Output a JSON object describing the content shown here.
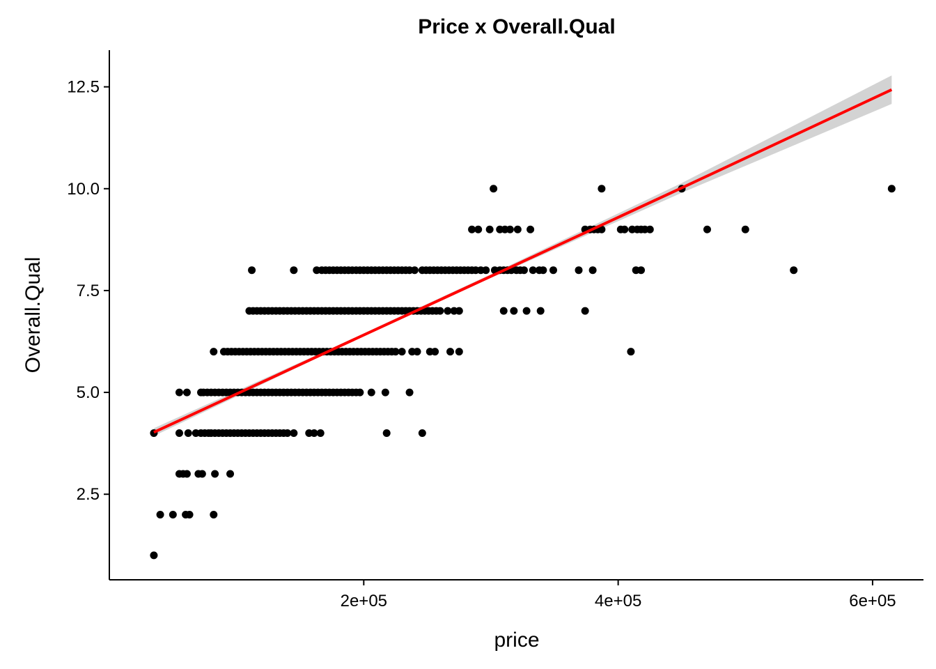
{
  "chart_data": {
    "type": "scatter",
    "title": "Price x Overall.Qual",
    "xlabel": "price",
    "ylabel": "Overall.Qual",
    "xlim": [
      0,
      640000
    ],
    "ylim": [
      0.4,
      13.4
    ],
    "x_ticks": [
      {
        "value": 200000,
        "label": "2e+05"
      },
      {
        "value": 400000,
        "label": "4e+05"
      },
      {
        "value": 600000,
        "label": "6e+05"
      }
    ],
    "y_ticks": [
      {
        "value": 2.5,
        "label": "2.5"
      },
      {
        "value": 5.0,
        "label": "5.0"
      },
      {
        "value": 7.5,
        "label": "7.5"
      },
      {
        "value": 10.0,
        "label": "10.0"
      },
      {
        "value": 12.5,
        "label": "12.5"
      }
    ],
    "grid": false,
    "legend": "none",
    "point_color": "#000000",
    "series": [
      {
        "points": [
          [
            35000,
            1
          ],
          [
            40000,
            2
          ],
          [
            50000,
            2
          ],
          [
            60000,
            2
          ],
          [
            63000,
            2
          ],
          [
            82000,
            2
          ],
          [
            55000,
            3
          ],
          [
            58000,
            3
          ],
          [
            61000,
            3
          ],
          [
            70000,
            3
          ],
          [
            73000,
            3
          ],
          [
            83000,
            3
          ],
          [
            95000,
            3
          ],
          [
            35000,
            4
          ],
          [
            55000,
            4
          ],
          [
            62000,
            4
          ],
          [
            68000,
            4
          ],
          [
            72000,
            4
          ],
          [
            75000,
            4
          ],
          [
            78000,
            4
          ],
          [
            80000,
            4
          ],
          [
            83000,
            4
          ],
          [
            86000,
            4
          ],
          [
            89000,
            4
          ],
          [
            92000,
            4
          ],
          [
            95000,
            4
          ],
          [
            98000,
            4
          ],
          [
            101000,
            4
          ],
          [
            104000,
            4
          ],
          [
            107000,
            4
          ],
          [
            110000,
            4
          ],
          [
            113000,
            4
          ],
          [
            116000,
            4
          ],
          [
            119000,
            4
          ],
          [
            122000,
            4
          ],
          [
            125000,
            4
          ],
          [
            128000,
            4
          ],
          [
            131000,
            4
          ],
          [
            134000,
            4
          ],
          [
            137000,
            4
          ],
          [
            140000,
            4
          ],
          [
            145000,
            4
          ],
          [
            157000,
            4
          ],
          [
            161000,
            4
          ],
          [
            166000,
            4
          ],
          [
            218000,
            4
          ],
          [
            246000,
            4
          ],
          [
            55000,
            5
          ],
          [
            61000,
            5
          ],
          [
            72000,
            5
          ],
          [
            74000,
            5
          ],
          [
            77000,
            5
          ],
          [
            80000,
            5
          ],
          [
            83000,
            5
          ],
          [
            86000,
            5
          ],
          [
            89000,
            5
          ],
          [
            92000,
            5
          ],
          [
            95000,
            5
          ],
          [
            98000,
            5
          ],
          [
            101000,
            5
          ],
          [
            104000,
            5
          ],
          [
            107000,
            5
          ],
          [
            110000,
            5
          ],
          [
            113000,
            5
          ],
          [
            116000,
            5
          ],
          [
            119000,
            5
          ],
          [
            122000,
            5
          ],
          [
            125000,
            5
          ],
          [
            128000,
            5
          ],
          [
            131000,
            5
          ],
          [
            134000,
            5
          ],
          [
            137000,
            5
          ],
          [
            140000,
            5
          ],
          [
            143000,
            5
          ],
          [
            146000,
            5
          ],
          [
            149000,
            5
          ],
          [
            152000,
            5
          ],
          [
            155000,
            5
          ],
          [
            158000,
            5
          ],
          [
            161000,
            5
          ],
          [
            164000,
            5
          ],
          [
            167000,
            5
          ],
          [
            170000,
            5
          ],
          [
            173000,
            5
          ],
          [
            176000,
            5
          ],
          [
            179000,
            5
          ],
          [
            182000,
            5
          ],
          [
            185000,
            5
          ],
          [
            188000,
            5
          ],
          [
            191000,
            5
          ],
          [
            194000,
            5
          ],
          [
            197000,
            5
          ],
          [
            206000,
            5
          ],
          [
            217000,
            5
          ],
          [
            236000,
            5
          ],
          [
            82000,
            6
          ],
          [
            90000,
            6
          ],
          [
            93000,
            6
          ],
          [
            96000,
            6
          ],
          [
            99000,
            6
          ],
          [
            102000,
            6
          ],
          [
            105000,
            6
          ],
          [
            108000,
            6
          ],
          [
            111000,
            6
          ],
          [
            114000,
            6
          ],
          [
            117000,
            6
          ],
          [
            120000,
            6
          ],
          [
            123000,
            6
          ],
          [
            126000,
            6
          ],
          [
            129000,
            6
          ],
          [
            132000,
            6
          ],
          [
            135000,
            6
          ],
          [
            138000,
            6
          ],
          [
            141000,
            6
          ],
          [
            144000,
            6
          ],
          [
            147000,
            6
          ],
          [
            150000,
            6
          ],
          [
            153000,
            6
          ],
          [
            156000,
            6
          ],
          [
            159000,
            6
          ],
          [
            162000,
            6
          ],
          [
            165000,
            6
          ],
          [
            168000,
            6
          ],
          [
            171000,
            6
          ],
          [
            174000,
            6
          ],
          [
            177000,
            6
          ],
          [
            180000,
            6
          ],
          [
            183000,
            6
          ],
          [
            186000,
            6
          ],
          [
            189000,
            6
          ],
          [
            192000,
            6
          ],
          [
            195000,
            6
          ],
          [
            198000,
            6
          ],
          [
            201000,
            6
          ],
          [
            204000,
            6
          ],
          [
            207000,
            6
          ],
          [
            210000,
            6
          ],
          [
            213000,
            6
          ],
          [
            216000,
            6
          ],
          [
            219000,
            6
          ],
          [
            222000,
            6
          ],
          [
            225000,
            6
          ],
          [
            230000,
            6
          ],
          [
            238000,
            6
          ],
          [
            242000,
            6
          ],
          [
            252000,
            6
          ],
          [
            256000,
            6
          ],
          [
            268000,
            6
          ],
          [
            275000,
            6
          ],
          [
            410000,
            6
          ],
          [
            110000,
            7
          ],
          [
            113000,
            7
          ],
          [
            116000,
            7
          ],
          [
            119000,
            7
          ],
          [
            122000,
            7
          ],
          [
            125000,
            7
          ],
          [
            128000,
            7
          ],
          [
            131000,
            7
          ],
          [
            134000,
            7
          ],
          [
            137000,
            7
          ],
          [
            140000,
            7
          ],
          [
            143000,
            7
          ],
          [
            146000,
            7
          ],
          [
            149000,
            7
          ],
          [
            152000,
            7
          ],
          [
            155000,
            7
          ],
          [
            158000,
            7
          ],
          [
            161000,
            7
          ],
          [
            164000,
            7
          ],
          [
            167000,
            7
          ],
          [
            170000,
            7
          ],
          [
            173000,
            7
          ],
          [
            176000,
            7
          ],
          [
            179000,
            7
          ],
          [
            182000,
            7
          ],
          [
            185000,
            7
          ],
          [
            188000,
            7
          ],
          [
            191000,
            7
          ],
          [
            194000,
            7
          ],
          [
            197000,
            7
          ],
          [
            200000,
            7
          ],
          [
            203000,
            7
          ],
          [
            206000,
            7
          ],
          [
            209000,
            7
          ],
          [
            212000,
            7
          ],
          [
            215000,
            7
          ],
          [
            218000,
            7
          ],
          [
            221000,
            7
          ],
          [
            224000,
            7
          ],
          [
            227000,
            7
          ],
          [
            230000,
            7
          ],
          [
            233000,
            7
          ],
          [
            236000,
            7
          ],
          [
            239000,
            7
          ],
          [
            242000,
            7
          ],
          [
            245000,
            7
          ],
          [
            248000,
            7
          ],
          [
            251000,
            7
          ],
          [
            254000,
            7
          ],
          [
            257000,
            7
          ],
          [
            260000,
            7
          ],
          [
            266000,
            7
          ],
          [
            271000,
            7
          ],
          [
            275000,
            7
          ],
          [
            310000,
            7
          ],
          [
            318000,
            7
          ],
          [
            328000,
            7
          ],
          [
            339000,
            7
          ],
          [
            374000,
            7
          ],
          [
            112000,
            8
          ],
          [
            145000,
            8
          ],
          [
            163000,
            8
          ],
          [
            167000,
            8
          ],
          [
            170000,
            8
          ],
          [
            173000,
            8
          ],
          [
            176000,
            8
          ],
          [
            179000,
            8
          ],
          [
            182000,
            8
          ],
          [
            185000,
            8
          ],
          [
            188000,
            8
          ],
          [
            191000,
            8
          ],
          [
            194000,
            8
          ],
          [
            197000,
            8
          ],
          [
            200000,
            8
          ],
          [
            203000,
            8
          ],
          [
            206000,
            8
          ],
          [
            209000,
            8
          ],
          [
            212000,
            8
          ],
          [
            215000,
            8
          ],
          [
            218000,
            8
          ],
          [
            221000,
            8
          ],
          [
            224000,
            8
          ],
          [
            227000,
            8
          ],
          [
            230000,
            8
          ],
          [
            233000,
            8
          ],
          [
            236000,
            8
          ],
          [
            240000,
            8
          ],
          [
            246000,
            8
          ],
          [
            249000,
            8
          ],
          [
            252000,
            8
          ],
          [
            255000,
            8
          ],
          [
            258000,
            8
          ],
          [
            261000,
            8
          ],
          [
            264000,
            8
          ],
          [
            267000,
            8
          ],
          [
            270000,
            8
          ],
          [
            273000,
            8
          ],
          [
            276000,
            8
          ],
          [
            279000,
            8
          ],
          [
            282000,
            8
          ],
          [
            285000,
            8
          ],
          [
            288000,
            8
          ],
          [
            292000,
            8
          ],
          [
            296000,
            8
          ],
          [
            303000,
            8
          ],
          [
            307000,
            8
          ],
          [
            310000,
            8
          ],
          [
            313000,
            8
          ],
          [
            316000,
            8
          ],
          [
            320000,
            8
          ],
          [
            323000,
            8
          ],
          [
            326000,
            8
          ],
          [
            333000,
            8
          ],
          [
            338000,
            8
          ],
          [
            341000,
            8
          ],
          [
            349000,
            8
          ],
          [
            369000,
            8
          ],
          [
            380000,
            8
          ],
          [
            414000,
            8
          ],
          [
            418000,
            8
          ],
          [
            538000,
            8
          ],
          [
            285000,
            9
          ],
          [
            290000,
            9
          ],
          [
            299000,
            9
          ],
          [
            307000,
            9
          ],
          [
            311000,
            9
          ],
          [
            315000,
            9
          ],
          [
            321000,
            9
          ],
          [
            331000,
            9
          ],
          [
            374000,
            9
          ],
          [
            378000,
            9
          ],
          [
            381000,
            9
          ],
          [
            384000,
            9
          ],
          [
            387000,
            9
          ],
          [
            402000,
            9
          ],
          [
            405000,
            9
          ],
          [
            411000,
            9
          ],
          [
            415000,
            9
          ],
          [
            418000,
            9
          ],
          [
            421000,
            9
          ],
          [
            425000,
            9
          ],
          [
            470000,
            9
          ],
          [
            500000,
            9
          ],
          [
            302000,
            10
          ],
          [
            387000,
            10
          ],
          [
            450000,
            10
          ],
          [
            615000,
            10
          ]
        ]
      }
    ],
    "fit": {
      "method": "linear",
      "line_color": "#ff0000",
      "band_color": "#d3d3d3",
      "points": [
        {
          "x": 35000,
          "y": 4.02,
          "lo": 3.93,
          "hi": 4.12
        },
        {
          "x": 180000,
          "y": 6.12,
          "lo": 6.09,
          "hi": 6.16
        },
        {
          "x": 300000,
          "y": 7.85,
          "lo": 7.81,
          "hi": 7.9
        },
        {
          "x": 450000,
          "y": 10.02,
          "lo": 9.9,
          "hi": 10.14
        },
        {
          "x": 615000,
          "y": 12.43,
          "lo": 12.08,
          "hi": 12.78
        }
      ]
    }
  }
}
